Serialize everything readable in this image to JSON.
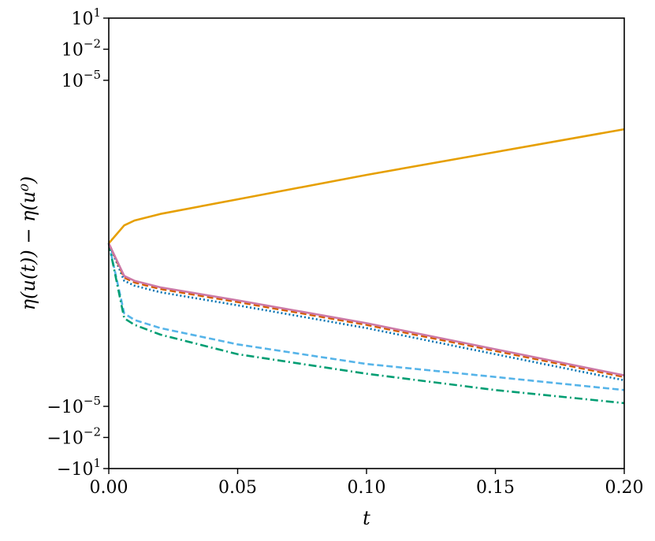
{
  "chart_data": {
    "type": "line",
    "xlabel": "t",
    "ylabel": "η(u(t)) − η(u⁰)",
    "xscale": "linear",
    "yscale": "symlog",
    "xlim": [
      0.0,
      0.2
    ],
    "ylim": [
      -10,
      10
    ],
    "grid": false,
    "legend": "none",
    "x_ticks": [
      {
        "value": 0.0,
        "label": "0.00"
      },
      {
        "value": 0.05,
        "label": "0.05"
      },
      {
        "value": 0.1,
        "label": "0.10"
      },
      {
        "value": 0.15,
        "label": "0.15"
      },
      {
        "value": 0.2,
        "label": "0.20"
      }
    ],
    "y_ticks": [
      {
        "value": 10,
        "base": "10",
        "exp": "1"
      },
      {
        "value": 0.01,
        "base": "10",
        "exp": "−2"
      },
      {
        "value": 1e-05,
        "base": "10",
        "exp": "−5"
      },
      {
        "value": -1e-05,
        "base": "−10",
        "exp": "−5"
      },
      {
        "value": -0.01,
        "base": "−10",
        "exp": "−2"
      },
      {
        "value": -10,
        "base": "−10",
        "exp": "1"
      }
    ],
    "series": [
      {
        "color": "#E69F00",
        "dash": "solid",
        "x": [
          0.0,
          0.006,
          0.01,
          0.02,
          0.05,
          0.1,
          0.15,
          0.2
        ],
        "y": [
          0,
          1.1e-06,
          1.4e-06,
          1.8e-06,
          2.7e-06,
          4.2e-06,
          5.6e-06,
          7e-06
        ]
      },
      {
        "color": "#56B4E9",
        "dash": "dashed",
        "x": [
          0.0,
          0.006,
          0.01,
          0.02,
          0.05,
          0.1,
          0.15,
          0.2
        ],
        "y": [
          0,
          -4.3e-06,
          -4.7e-06,
          -5.2e-06,
          -6.2e-06,
          -7.4e-06,
          -8.2e-06,
          -9e-06
        ]
      },
      {
        "color": "#009E73",
        "dash": "dashdot",
        "x": [
          0.0,
          0.006,
          0.01,
          0.02,
          0.05,
          0.1,
          0.15,
          0.2
        ],
        "y": [
          0,
          -4.6e-06,
          -5e-06,
          -5.6e-06,
          -6.8e-06,
          -8e-06,
          -9e-06,
          -9.8e-06
        ]
      },
      {
        "color": "#0072B2",
        "dash": "dotted",
        "x": [
          0.0,
          0.006,
          0.01,
          0.02,
          0.05,
          0.1,
          0.15,
          0.2
        ],
        "y": [
          0,
          -2.3e-06,
          -2.6e-06,
          -3e-06,
          -3.8e-06,
          -5.2e-06,
          -6.8e-06,
          -8.4e-06
        ]
      },
      {
        "color": "#D55E00",
        "dash": "dashed",
        "x": [
          0.0,
          0.006,
          0.01,
          0.02,
          0.05,
          0.1,
          0.15,
          0.2
        ],
        "y": [
          0,
          -2.1e-06,
          -2.4e-06,
          -2.8e-06,
          -3.6e-06,
          -5e-06,
          -6.6e-06,
          -8.2e-06
        ]
      },
      {
        "color": "#CC79A7",
        "dash": "solid",
        "x": [
          0.0,
          0.006,
          0.01,
          0.02,
          0.05,
          0.1,
          0.15,
          0.2
        ],
        "y": [
          0,
          -2e-06,
          -2.3e-06,
          -2.7e-06,
          -3.5e-06,
          -4.9e-06,
          -6.5e-06,
          -8.1e-06
        ]
      }
    ]
  }
}
